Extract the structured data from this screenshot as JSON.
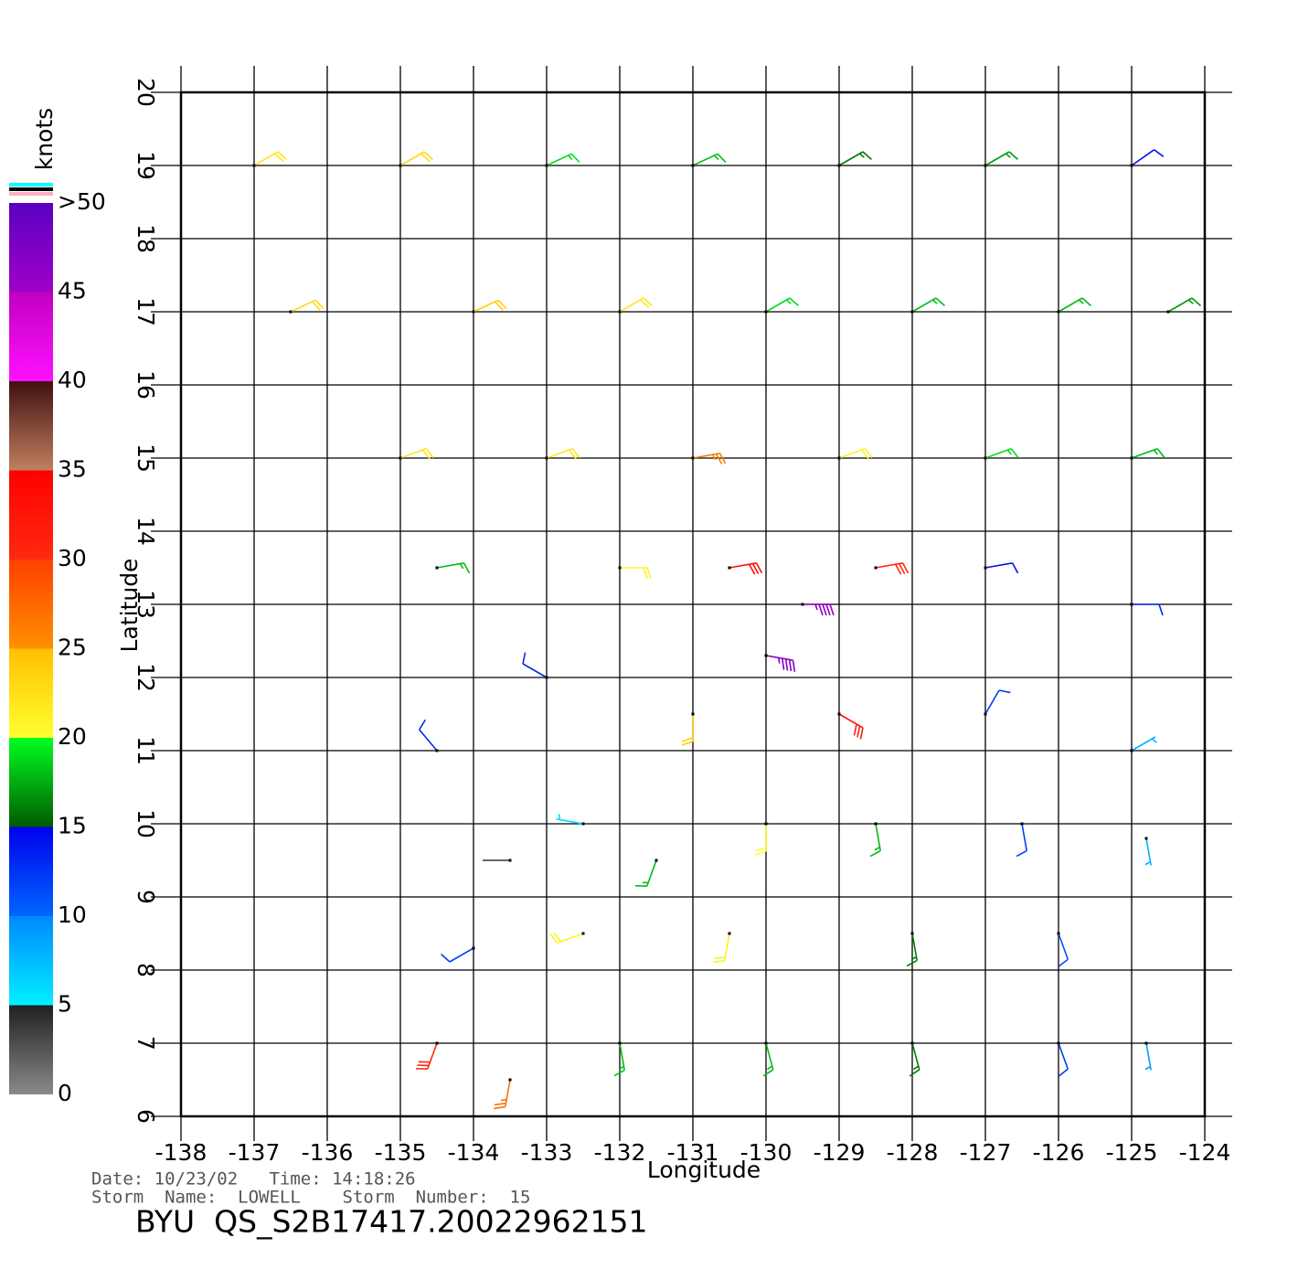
{
  "chart_data": {
    "type": "barb",
    "xlabel": "Longitude",
    "ylabel": "Latitude",
    "xlim": [
      -138,
      -124
    ],
    "ylim": [
      6,
      20
    ],
    "xticks": [
      -138,
      -137,
      -136,
      -135,
      -134,
      -133,
      -132,
      -131,
      -130,
      -129,
      -128,
      -127,
      -126,
      -125,
      -124
    ],
    "yticks": [
      6,
      7,
      8,
      9,
      10,
      11,
      12,
      13,
      14,
      15,
      16,
      17,
      18,
      19,
      20
    ],
    "grid": true,
    "colorbar": {
      "label": "knots",
      "lim": [
        0,
        50
      ],
      "ticks": [
        0,
        5,
        10,
        15,
        20,
        25,
        30,
        35,
        40,
        45,
        {
          "value": 50,
          "label": ">50"
        }
      ],
      "colors": [
        [
          "#8a8a8a",
          "#202020"
        ],
        [
          "#00f0ff",
          "#0088ff"
        ],
        [
          "#0066ff",
          "#0000ee"
        ],
        [
          "#005a00",
          "#00ff20"
        ],
        [
          "#ffff30",
          "#ffc000"
        ],
        [
          "#ff9000",
          "#ff4000"
        ],
        [
          "#ff2a10",
          "#ff0000"
        ],
        [
          "#c08060",
          "#401010"
        ],
        [
          "#ff10ff",
          "#c000c0"
        ],
        [
          "#a000c8",
          "#5a00c0"
        ]
      ]
    },
    "barbs": {
      "lon": [
        -137,
        -135,
        -133,
        -131,
        -129,
        -127,
        -125,
        -136.5,
        -134,
        -132,
        -130,
        -128,
        -126,
        -124.5,
        -135,
        -133,
        -131,
        -129,
        -127,
        -125,
        -134.5,
        -132,
        -130.5,
        -129.5,
        -128.5,
        -127,
        -125,
        -130,
        -129,
        -131,
        -133,
        -134.5,
        -127,
        -125,
        -132.5,
        -133.5,
        -131.5,
        -130,
        -128.5,
        -126.5,
        -124.8,
        -134,
        -132.5,
        -130.5,
        -128,
        -126,
        -134.5,
        -133.5,
        -132,
        -130,
        -128,
        -126,
        -124.8
      ],
      "lat": [
        19,
        19,
        19,
        19,
        19,
        19,
        19,
        17,
        17,
        17,
        17,
        17,
        17,
        17,
        15,
        15,
        15,
        15,
        15,
        15,
        13.5,
        13.5,
        13.5,
        13,
        13.5,
        13.5,
        13,
        12.3,
        11.5,
        11.5,
        12,
        11,
        11.5,
        11,
        10,
        9.5,
        9.5,
        10,
        10,
        10,
        9.8,
        8.3,
        8.5,
        8.5,
        8.5,
        8.5,
        7,
        6.5,
        7,
        7,
        7,
        7,
        7
      ],
      "speed": [
        22,
        23,
        19,
        18,
        16,
        17,
        14,
        23,
        24,
        22,
        19,
        18,
        18,
        17,
        22,
        22,
        26,
        21,
        19,
        18,
        18,
        21,
        33,
        46,
        30,
        14,
        13,
        47,
        32,
        24,
        13,
        13,
        12,
        8,
        6,
        4,
        18,
        20,
        18,
        12,
        8,
        12,
        21,
        21,
        16,
        11,
        30,
        27,
        18,
        18,
        16,
        12,
        9
      ],
      "direction": [
        60,
        60,
        65,
        65,
        60,
        60,
        55,
        65,
        65,
        60,
        60,
        60,
        60,
        60,
        70,
        70,
        80,
        70,
        70,
        70,
        80,
        90,
        80,
        90,
        80,
        80,
        90,
        100,
        120,
        180,
        300,
        320,
        30,
        60,
        280,
        270,
        200,
        180,
        170,
        170,
        170,
        240,
        250,
        190,
        170,
        160,
        200,
        190,
        170,
        165,
        165,
        160,
        170
      ]
    }
  },
  "footer": {
    "date_time": "Date: 10/23/02   Time: 14:18:26",
    "storm": "Storm  Name:  LOWELL    Storm  Number:  15",
    "file": "BYU  QS_S2B17417.20022962151"
  }
}
